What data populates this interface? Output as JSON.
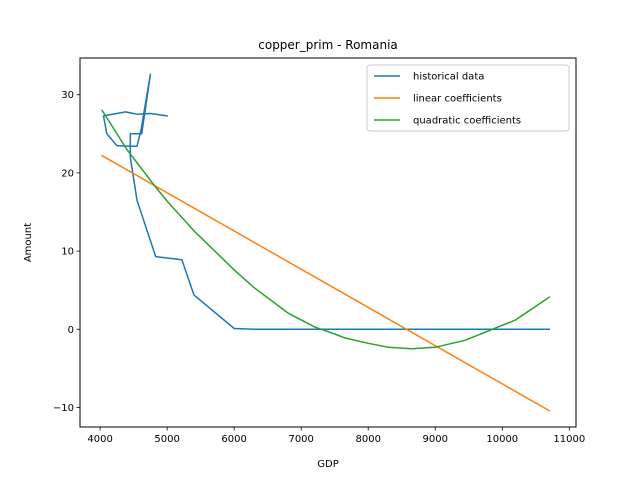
{
  "chart_data": {
    "type": "line",
    "title": "copper_prim - Romania",
    "xlabel": "GDP",
    "ylabel": "Amount",
    "xlim": [
      3700,
      11100
    ],
    "ylim": [
      -12.5,
      34.7
    ],
    "xticks": [
      4000,
      5000,
      6000,
      7000,
      8000,
      9000,
      10000,
      11000
    ],
    "yticks": [
      -10,
      0,
      10,
      20,
      30
    ],
    "grid": false,
    "legend_position": "upper right",
    "series": [
      {
        "name": "historical data",
        "color": "#1f77b4",
        "x": [
          5000,
          4750,
          4560,
          4380,
          4050,
          4100,
          4250,
          4470,
          4550,
          4610,
          4750,
          4620,
          4450,
          4450,
          4550,
          4830,
          5220,
          5400,
          6000,
          6300,
          7600,
          8300,
          7600,
          8300,
          9000,
          10000,
          10700
        ],
        "y": [
          27.3,
          27.6,
          27.5,
          27.8,
          27.3,
          25.0,
          23.5,
          23.4,
          23.4,
          25.5,
          32.6,
          25.0,
          25.0,
          22.0,
          16.5,
          9.3,
          8.9,
          4.4,
          0.1,
          0.0,
          0.0,
          0.0,
          0.0,
          0.0,
          0.0,
          0.0,
          0.0
        ]
      },
      {
        "name": "linear coefficients",
        "color": "#ff7f0e",
        "x": [
          4030,
          10700
        ],
        "y": [
          22.2,
          -10.4
        ]
      },
      {
        "name": "quadratic coefficients",
        "color": "#2ca02c",
        "x": [
          4030,
          4400,
          4800,
          5000,
          5400,
          6000,
          6300,
          6800,
          7200,
          7500,
          7650,
          8000,
          8300,
          8650,
          9000,
          9450,
          10200,
          10700
        ],
        "y": [
          28.0,
          23.0,
          18.5,
          16.4,
          12.6,
          7.6,
          5.3,
          2.1,
          0.3,
          -0.6,
          -1.1,
          -1.8,
          -2.3,
          -2.5,
          -2.3,
          -1.4,
          1.2,
          4.1
        ]
      }
    ]
  }
}
